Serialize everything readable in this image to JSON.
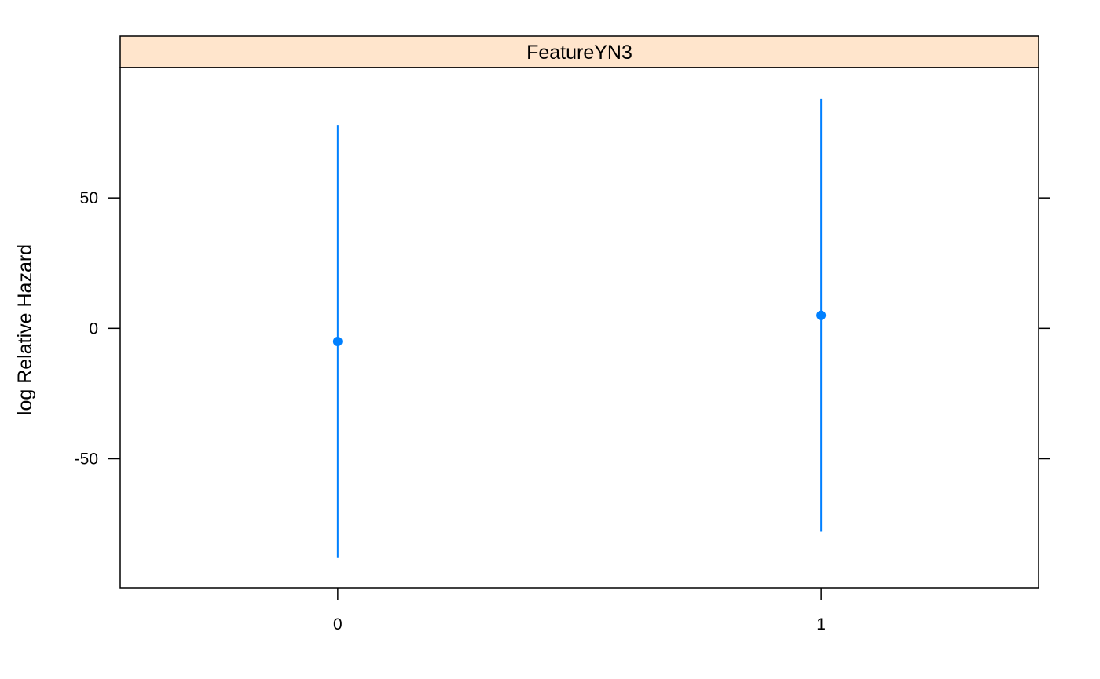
{
  "chart_data": {
    "type": "scatter",
    "panel_title": "FeatureYN3",
    "xlabel": "",
    "ylabel": "log Relative Hazard",
    "categories": [
      "0",
      "1"
    ],
    "x_tick_labels": [
      "0",
      "1"
    ],
    "y_ticks": [
      -50,
      0,
      50
    ],
    "y_tick_labels": [
      "-50",
      "0",
      "50"
    ],
    "ylim": [
      -99.5,
      100
    ],
    "xlim": [
      -0.45,
      1.45
    ],
    "grid": false,
    "legend": "none",
    "series": [
      {
        "points": [
          {
            "x": "0",
            "y": -5,
            "lower": -88,
            "upper": 78
          },
          {
            "x": "1",
            "y": 5,
            "lower": -78,
            "upper": 88
          }
        ]
      }
    ],
    "colors": {
      "series": "#0080ff",
      "strip_background": "#ffe5cc",
      "axis": "#000000"
    }
  }
}
